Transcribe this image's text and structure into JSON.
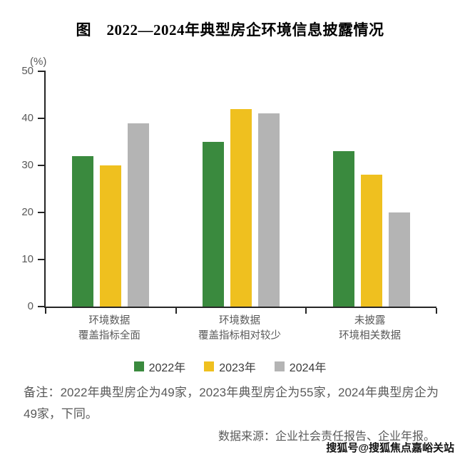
{
  "title": "图　2022—2024年典型房企环境信息披露情况",
  "chart_data": {
    "type": "bar",
    "title": "图　2022—2024年典型房企环境信息披露情况",
    "xlabel": "",
    "ylabel": "(%)",
    "ylim": [
      0,
      50
    ],
    "yticks": [
      0,
      10,
      20,
      30,
      40,
      50
    ],
    "grid": false,
    "legend_position": "bottom",
    "categories": [
      [
        "环境数据",
        "覆盖指标全面"
      ],
      [
        "环境数据",
        "覆盖指标相对较少"
      ],
      [
        "未披露",
        "环境相关数据"
      ]
    ],
    "series": [
      {
        "name": "2022年",
        "color": "#3a8a3e",
        "values": [
          32,
          35,
          33
        ]
      },
      {
        "name": "2023年",
        "color": "#efc01f",
        "values": [
          30,
          42,
          28
        ]
      },
      {
        "name": "2024年",
        "color": "#b4b4b4",
        "values": [
          39,
          41,
          20
        ]
      }
    ]
  },
  "notes": {
    "remark": "备注：2022年典型房企为49家，2023年典型房企为55家，2024年典型房企为49家，下同。",
    "source": "数据来源：企业社会责任报告、企业年报。"
  },
  "watermark": "搜狐号@搜狐焦点嘉峪关站"
}
